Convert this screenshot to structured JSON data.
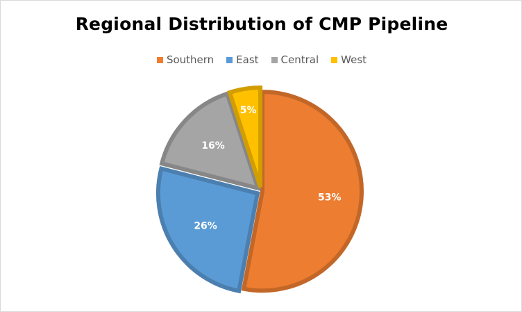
{
  "chart_data": {
    "type": "pie",
    "title": "Regional Distribution of CMP Pipeline",
    "categories": [
      "Southern",
      "East",
      "Central",
      "West"
    ],
    "values": [
      53,
      26,
      16,
      5
    ],
    "labels": [
      "53%",
      "26%",
      "16%",
      "5%"
    ],
    "colors": [
      "#ed7d31",
      "#5b9bd5",
      "#a5a5a5",
      "#ffc000"
    ],
    "legend_position": "top",
    "exploded": true
  }
}
